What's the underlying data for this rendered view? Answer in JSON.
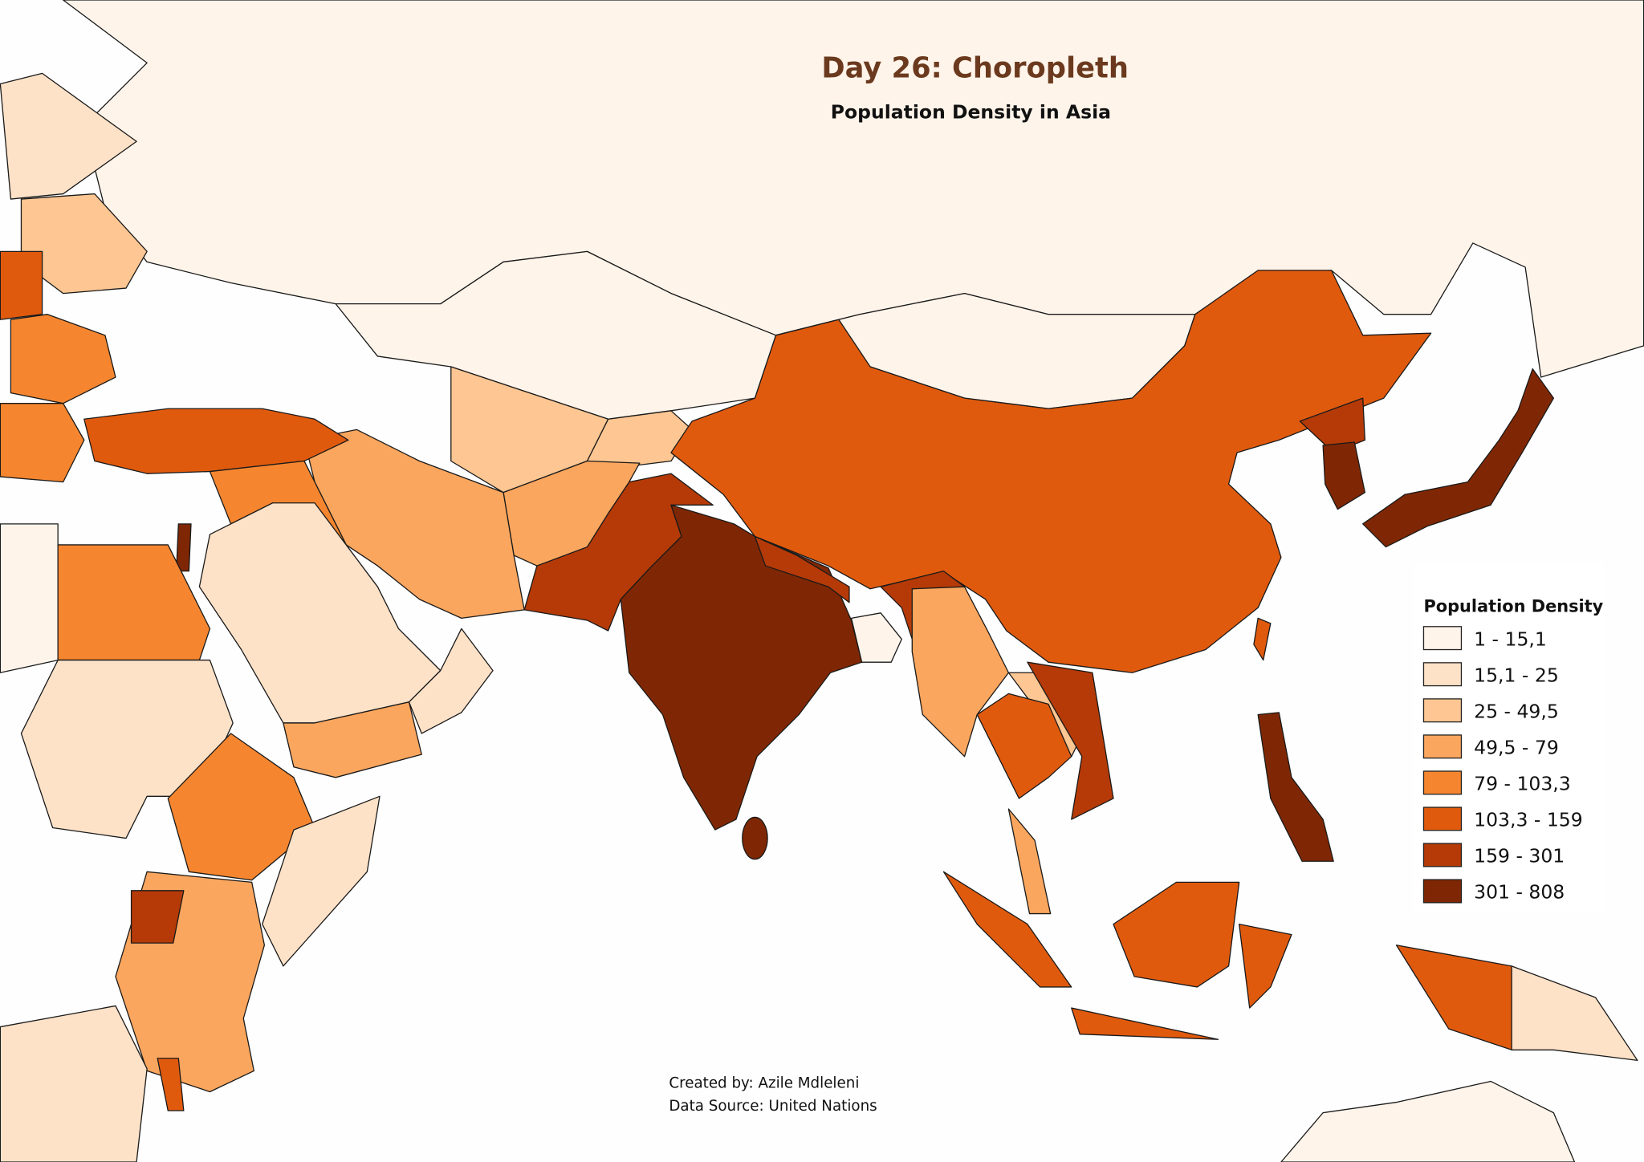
{
  "title": "Day 26: Choropleth",
  "subtitle": "Population Density in Asia",
  "legend": {
    "title": "Population Density",
    "items": [
      {
        "label": "1 - 15,1",
        "color": "#fff4ea"
      },
      {
        "label": "15,1 - 25",
        "color": "#fde2c8"
      },
      {
        "label": "25 - 49,5",
        "color": "#fdc692"
      },
      {
        "label": "49,5 - 79",
        "color": "#fba65e"
      },
      {
        "label": "79 - 103,3",
        "color": "#f5862f"
      },
      {
        "label": "103,3 - 159",
        "color": "#e05a0e"
      },
      {
        "label": "159 - 301",
        "color": "#b53a07"
      },
      {
        "label": "301 - 808",
        "color": "#7f2704"
      }
    ]
  },
  "credits": [
    "Created by: Azile Mdleleni",
    "Data Source: United Nations"
  ]
}
